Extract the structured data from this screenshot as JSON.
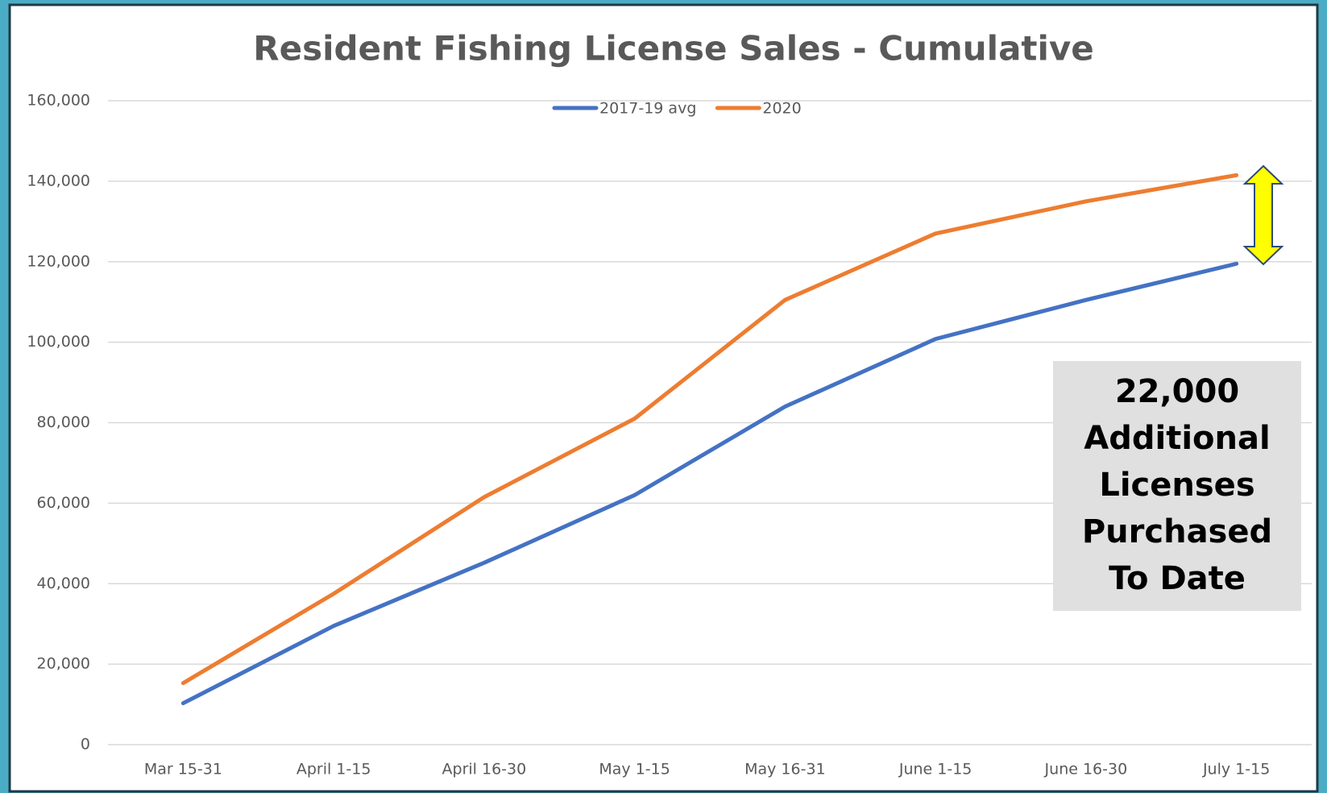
{
  "chart_data": {
    "type": "line",
    "title": "Resident Fishing License Sales - Cumulative",
    "categories": [
      "Mar 15-31",
      "April 1-15",
      "April 16-30",
      "May 1-15",
      "May 16-31",
      "June 1-15",
      "June 16-30",
      "July 1-15"
    ],
    "series": [
      {
        "name": "2017-19 avg",
        "color": "#4472c4",
        "values": [
          10300,
          29500,
          45200,
          62000,
          84000,
          100800,
          110500,
          119500
        ]
      },
      {
        "name": "2020",
        "color": "#ed7d31",
        "values": [
          15300,
          37500,
          61500,
          81000,
          110500,
          127000,
          135000,
          141500
        ]
      }
    ],
    "ylim": [
      0,
      160000
    ],
    "yticks": [
      0,
      {
        "value": 20000,
        "label": "20,000"
      },
      {
        "value": 40000,
        "label": "40,000"
      },
      {
        "value": 60000,
        "label": "60,000"
      },
      {
        "value": 80000,
        "label": "80,000"
      },
      {
        "value": 100000,
        "label": "100,000"
      },
      {
        "value": 120000,
        "label": "120,000"
      },
      {
        "value": 140000,
        "label": "140,000"
      },
      {
        "value": 160000,
        "label": "160,000"
      }
    ],
    "grid": true,
    "legend": "top",
    "annotation": [
      "22,000",
      "Additional",
      "Licenses",
      "Purchased",
      "To Date"
    ]
  }
}
